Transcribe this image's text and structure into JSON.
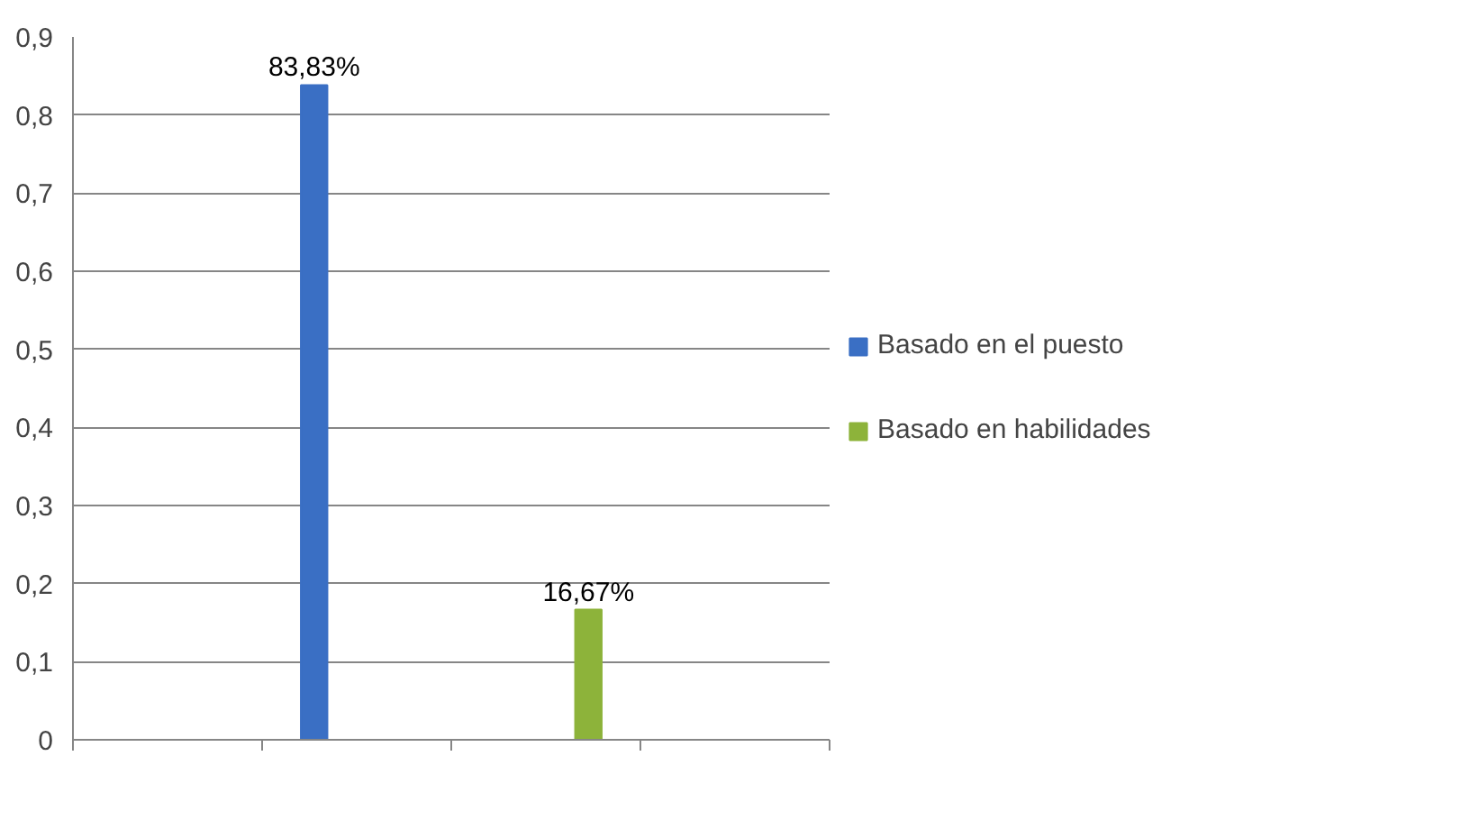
{
  "chart_data": {
    "type": "bar",
    "categories": [
      null,
      null,
      null,
      null
    ],
    "series": [
      {
        "name": "Basado en el puesto",
        "color": "#3a6fc4",
        "values": [
          null,
          0.8383,
          null,
          null
        ],
        "value_labels": [
          null,
          "83,83%",
          null,
          null
        ]
      },
      {
        "name": "Basado en habilidades",
        "color": "#8db33a",
        "values": [
          null,
          null,
          0.1667,
          null
        ],
        "value_labels": [
          null,
          null,
          "16,67%",
          null
        ]
      }
    ],
    "ylim": [
      0,
      0.9
    ],
    "yticks": [
      0,
      {
        "value": 0.1,
        "label": "0,1"
      },
      {
        "value": 0.2,
        "label": "0,2"
      },
      {
        "value": 0.3,
        "label": "0,3"
      },
      {
        "value": 0.4,
        "label": "0,4"
      },
      {
        "value": 0.5,
        "label": "0,5"
      },
      {
        "value": 0.6,
        "label": "0,6"
      },
      {
        "value": 0.7,
        "label": "0,7"
      },
      {
        "value": 0.8,
        "label": "0,8"
      },
      {
        "value": 0.9,
        "label": "0,9"
      }
    ],
    "grid": "y",
    "legend": "right"
  }
}
